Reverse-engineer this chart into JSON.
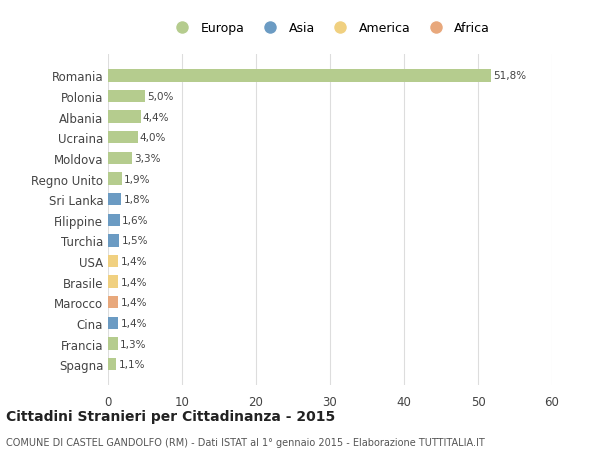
{
  "countries": [
    "Spagna",
    "Francia",
    "Cina",
    "Marocco",
    "Brasile",
    "USA",
    "Turchia",
    "Filippine",
    "Sri Lanka",
    "Regno Unito",
    "Moldova",
    "Ucraina",
    "Albania",
    "Polonia",
    "Romania"
  ],
  "values": [
    1.1,
    1.3,
    1.4,
    1.4,
    1.4,
    1.4,
    1.5,
    1.6,
    1.8,
    1.9,
    3.3,
    4.0,
    4.4,
    5.0,
    51.8
  ],
  "labels": [
    "1,1%",
    "1,3%",
    "1,4%",
    "1,4%",
    "1,4%",
    "1,4%",
    "1,5%",
    "1,6%",
    "1,8%",
    "1,9%",
    "3,3%",
    "4,0%",
    "4,4%",
    "5,0%",
    "51,8%"
  ],
  "continents": [
    "Europa",
    "Europa",
    "Asia",
    "Africa",
    "America",
    "America",
    "Asia",
    "Asia",
    "Asia",
    "Europa",
    "Europa",
    "Europa",
    "Europa",
    "Europa",
    "Europa"
  ],
  "colors": {
    "Europa": "#b5cc8e",
    "Asia": "#6b9bc3",
    "America": "#f0d080",
    "Africa": "#e8a87c"
  },
  "legend_order": [
    "Europa",
    "Asia",
    "America",
    "Africa"
  ],
  "title": "Cittadini Stranieri per Cittadinanza - 2015",
  "subtitle": "COMUNE DI CASTEL GANDOLFO (RM) - Dati ISTAT al 1° gennaio 2015 - Elaborazione TUTTITALIA.IT",
  "xlim": [
    0,
    60
  ],
  "xticks": [
    0,
    10,
    20,
    30,
    40,
    50,
    60
  ],
  "background_color": "#ffffff",
  "bar_height": 0.6,
  "grid_color": "#dddddd"
}
